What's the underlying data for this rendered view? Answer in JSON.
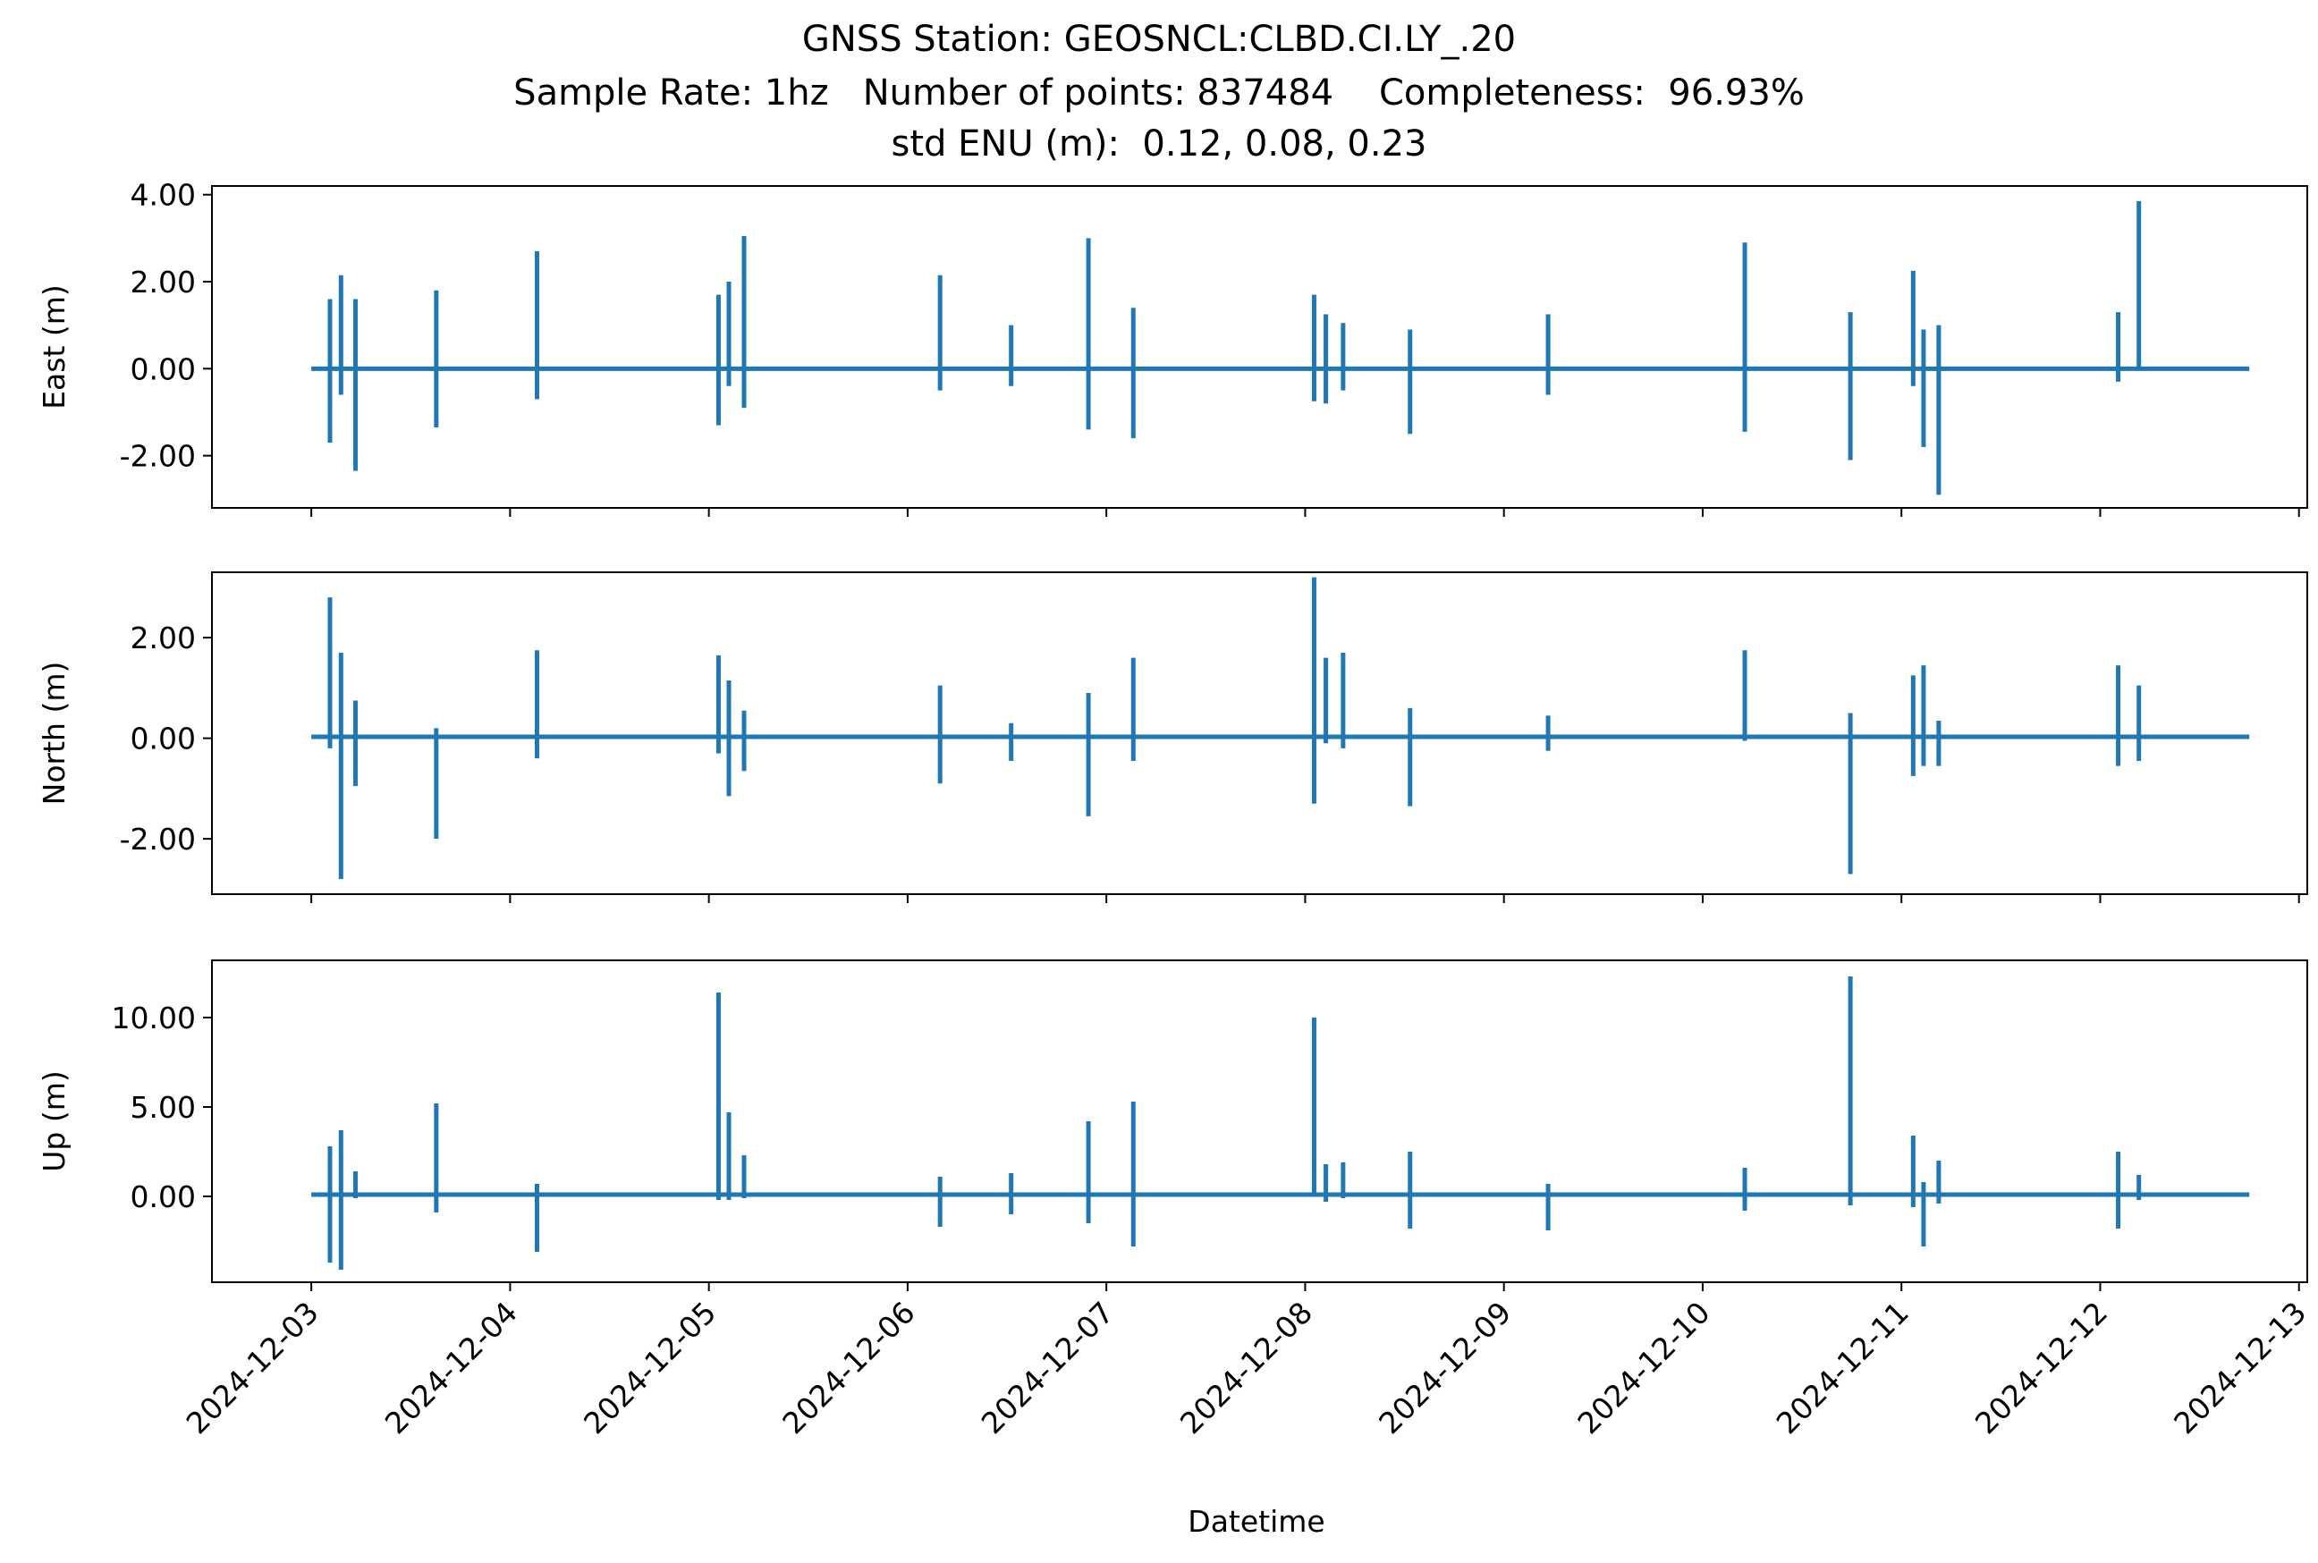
{
  "chart_data": {
    "type": "line",
    "title": "GNSS Station: GEOSNCL:CLBD.CI.LY_.20",
    "subtitle_line2": "Sample Rate: 1hz   Number of points: 837484    Completeness:  96.93%",
    "subtitle_line3": "std ENU (m):  0.12, 0.08, 0.23",
    "xlabel": "Datetime",
    "x_tick_labels": [
      "2024-12-03",
      "2024-12-04",
      "2024-12-05",
      "2024-12-06",
      "2024-12-07",
      "2024-12-08",
      "2024-12-09",
      "2024-12-10",
      "2024-12-11",
      "2024-12-12",
      "2024-12-13"
    ],
    "xlim": [
      "2024-12-02T12:00",
      "2024-12-13T01:00"
    ],
    "x_start": "2024-12-03T00:00",
    "x_end": "2024-12-12T18:00",
    "line_color": "#1f77b4",
    "grid": false,
    "panels": [
      {
        "ylabel": "East (m)",
        "ylim": [
          -3.2,
          4.2
        ],
        "ytick_values": [
          -2,
          0,
          2,
          4
        ],
        "ytick_labels": [
          "-2.00",
          "0.00",
          "2.00",
          "4.00"
        ],
        "baseline": 0.0,
        "spikes": [
          {
            "x": "2024-12-03T02:15",
            "max": 1.6,
            "min": -1.7
          },
          {
            "x": "2024-12-03T03:35",
            "max": 2.15,
            "min": -0.6
          },
          {
            "x": "2024-12-03T05:20",
            "max": 1.6,
            "min": -2.35
          },
          {
            "x": "2024-12-03T15:05",
            "max": 1.8,
            "min": -1.35
          },
          {
            "x": "2024-12-04T03:15",
            "max": 2.7,
            "min": -0.7
          },
          {
            "x": "2024-12-05T01:10",
            "max": 1.7,
            "min": -1.3
          },
          {
            "x": "2024-12-05T02:25",
            "max": 2.0,
            "min": -0.4
          },
          {
            "x": "2024-12-05T04:15",
            "max": 3.05,
            "min": -0.9
          },
          {
            "x": "2024-12-06T03:55",
            "max": 2.15,
            "min": -0.5
          },
          {
            "x": "2024-12-06T12:30",
            "max": 1.0,
            "min": -0.4
          },
          {
            "x": "2024-12-06T21:50",
            "max": 3.0,
            "min": -1.4
          },
          {
            "x": "2024-12-07T03:15",
            "max": 1.4,
            "min": -1.6
          },
          {
            "x": "2024-12-08T01:05",
            "max": 1.7,
            "min": -0.75
          },
          {
            "x": "2024-12-08T02:30",
            "max": 1.25,
            "min": -0.8
          },
          {
            "x": "2024-12-08T04:35",
            "max": 1.05,
            "min": -0.5
          },
          {
            "x": "2024-12-08T12:40",
            "max": 0.9,
            "min": -1.5
          },
          {
            "x": "2024-12-09T05:20",
            "max": 1.25,
            "min": -0.6
          },
          {
            "x": "2024-12-10T05:05",
            "max": 2.9,
            "min": -1.45
          },
          {
            "x": "2024-12-10T17:50",
            "max": 1.3,
            "min": -2.1
          },
          {
            "x": "2024-12-11T01:25",
            "max": 2.25,
            "min": -0.4
          },
          {
            "x": "2024-12-11T02:40",
            "max": 0.9,
            "min": -1.8
          },
          {
            "x": "2024-12-11T04:30",
            "max": 1.0,
            "min": -2.9
          },
          {
            "x": "2024-12-12T02:10",
            "max": 1.3,
            "min": -0.3
          },
          {
            "x": "2024-12-12T04:40",
            "max": 3.85,
            "min": 0.0
          }
        ]
      },
      {
        "ylabel": "North (m)",
        "ylim": [
          -3.1,
          3.3
        ],
        "ytick_values": [
          -2,
          0,
          2
        ],
        "ytick_labels": [
          "-2.00",
          "0.00",
          "2.00"
        ],
        "baseline": 0.03,
        "spikes": [
          {
            "x": "2024-12-03T02:15",
            "max": 2.8,
            "min": -0.2
          },
          {
            "x": "2024-12-03T03:35",
            "max": 1.7,
            "min": -2.8
          },
          {
            "x": "2024-12-03T05:20",
            "max": 0.75,
            "min": -0.95
          },
          {
            "x": "2024-12-03T15:05",
            "max": 0.2,
            "min": -2.0
          },
          {
            "x": "2024-12-04T03:15",
            "max": 1.75,
            "min": -0.4
          },
          {
            "x": "2024-12-05T01:10",
            "max": 1.65,
            "min": -0.3
          },
          {
            "x": "2024-12-05T02:25",
            "max": 1.15,
            "min": -1.15
          },
          {
            "x": "2024-12-05T04:15",
            "max": 0.55,
            "min": -0.65
          },
          {
            "x": "2024-12-06T03:55",
            "max": 1.05,
            "min": -0.9
          },
          {
            "x": "2024-12-06T12:30",
            "max": 0.3,
            "min": -0.45
          },
          {
            "x": "2024-12-06T21:50",
            "max": 0.9,
            "min": -1.55
          },
          {
            "x": "2024-12-07T03:15",
            "max": 1.6,
            "min": -0.45
          },
          {
            "x": "2024-12-08T01:05",
            "max": 3.2,
            "min": -1.3
          },
          {
            "x": "2024-12-08T02:30",
            "max": 1.6,
            "min": -0.1
          },
          {
            "x": "2024-12-08T04:35",
            "max": 1.7,
            "min": -0.2
          },
          {
            "x": "2024-12-08T12:40",
            "max": 0.6,
            "min": -1.35
          },
          {
            "x": "2024-12-09T05:20",
            "max": 0.45,
            "min": -0.25
          },
          {
            "x": "2024-12-10T05:05",
            "max": 1.75,
            "min": -0.05
          },
          {
            "x": "2024-12-10T17:50",
            "max": 0.5,
            "min": -2.7
          },
          {
            "x": "2024-12-11T01:25",
            "max": 1.25,
            "min": -0.75
          },
          {
            "x": "2024-12-11T02:40",
            "max": 1.45,
            "min": -0.55
          },
          {
            "x": "2024-12-11T04:30",
            "max": 0.35,
            "min": -0.55
          },
          {
            "x": "2024-12-12T02:10",
            "max": 1.45,
            "min": -0.55
          },
          {
            "x": "2024-12-12T04:40",
            "max": 1.05,
            "min": -0.45
          }
        ]
      },
      {
        "ylabel": "Up (m)",
        "ylim": [
          -4.8,
          13.2
        ],
        "ytick_values": [
          0,
          5,
          10
        ],
        "ytick_labels": [
          "0.00",
          "5.00",
          "10.00"
        ],
        "baseline": 0.1,
        "spikes": [
          {
            "x": "2024-12-03T02:15",
            "max": 2.8,
            "min": -3.7
          },
          {
            "x": "2024-12-03T03:35",
            "max": 3.7,
            "min": -4.1
          },
          {
            "x": "2024-12-03T05:20",
            "max": 1.4,
            "min": -0.1
          },
          {
            "x": "2024-12-03T15:05",
            "max": 5.2,
            "min": -0.9
          },
          {
            "x": "2024-12-04T03:15",
            "max": 0.7,
            "min": -3.1
          },
          {
            "x": "2024-12-05T01:10",
            "max": 11.4,
            "min": -0.2
          },
          {
            "x": "2024-12-05T02:25",
            "max": 4.7,
            "min": -0.2
          },
          {
            "x": "2024-12-05T04:15",
            "max": 2.3,
            "min": -0.1
          },
          {
            "x": "2024-12-06T03:55",
            "max": 1.1,
            "min": -1.7
          },
          {
            "x": "2024-12-06T12:30",
            "max": 1.3,
            "min": -1.0
          },
          {
            "x": "2024-12-06T21:50",
            "max": 4.2,
            "min": -1.5
          },
          {
            "x": "2024-12-07T03:15",
            "max": 5.3,
            "min": -2.8
          },
          {
            "x": "2024-12-08T01:05",
            "max": 10.0,
            "min": 0.0
          },
          {
            "x": "2024-12-08T02:30",
            "max": 1.8,
            "min": -0.3
          },
          {
            "x": "2024-12-08T04:35",
            "max": 1.9,
            "min": -0.1
          },
          {
            "x": "2024-12-08T12:40",
            "max": 2.5,
            "min": -1.8
          },
          {
            "x": "2024-12-09T05:20",
            "max": 0.7,
            "min": -1.9
          },
          {
            "x": "2024-12-10T05:05",
            "max": 1.6,
            "min": -0.8
          },
          {
            "x": "2024-12-10T17:50",
            "max": 12.3,
            "min": -0.5
          },
          {
            "x": "2024-12-11T01:25",
            "max": 3.4,
            "min": -0.6
          },
          {
            "x": "2024-12-11T02:40",
            "max": 0.8,
            "min": -2.8
          },
          {
            "x": "2024-12-11T04:30",
            "max": 2.0,
            "min": -0.4
          },
          {
            "x": "2024-12-12T02:10",
            "max": 2.5,
            "min": -1.8
          },
          {
            "x": "2024-12-12T04:40",
            "max": 1.2,
            "min": -0.2
          }
        ]
      }
    ]
  }
}
